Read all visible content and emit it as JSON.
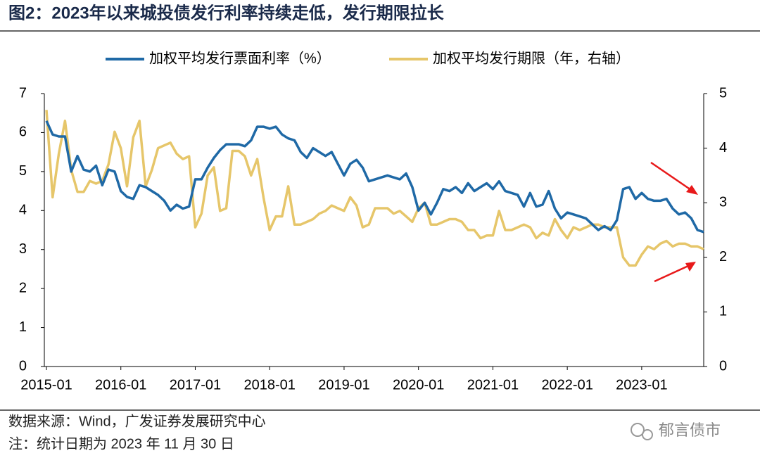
{
  "chart_data": {
    "type": "line",
    "title": "图2：2023年以来城投债发行利率持续走低，发行期限拉长",
    "x": [
      "2015-01",
      "2015-02",
      "2015-03",
      "2015-04",
      "2015-05",
      "2015-06",
      "2015-07",
      "2015-08",
      "2015-09",
      "2015-10",
      "2015-11",
      "2015-12",
      "2016-01",
      "2016-02",
      "2016-03",
      "2016-04",
      "2016-05",
      "2016-06",
      "2016-07",
      "2016-08",
      "2016-09",
      "2016-10",
      "2016-11",
      "2016-12",
      "2017-01",
      "2017-02",
      "2017-03",
      "2017-04",
      "2017-05",
      "2017-06",
      "2017-07",
      "2017-08",
      "2017-09",
      "2017-10",
      "2017-11",
      "2017-12",
      "2018-01",
      "2018-02",
      "2018-03",
      "2018-04",
      "2018-05",
      "2018-06",
      "2018-07",
      "2018-08",
      "2018-09",
      "2018-10",
      "2018-11",
      "2018-12",
      "2019-01",
      "2019-02",
      "2019-03",
      "2019-04",
      "2019-05",
      "2019-06",
      "2019-07",
      "2019-08",
      "2019-09",
      "2019-10",
      "2019-11",
      "2019-12",
      "2020-01",
      "2020-02",
      "2020-03",
      "2020-04",
      "2020-05",
      "2020-06",
      "2020-07",
      "2020-08",
      "2020-09",
      "2020-10",
      "2020-11",
      "2020-12",
      "2021-01",
      "2021-02",
      "2021-03",
      "2021-04",
      "2021-05",
      "2021-06",
      "2021-07",
      "2021-08",
      "2021-09",
      "2021-10",
      "2021-11",
      "2021-12",
      "2022-01",
      "2022-02",
      "2022-03",
      "2022-04",
      "2022-05",
      "2022-06",
      "2022-07",
      "2022-08",
      "2022-09",
      "2022-10",
      "2022-11",
      "2022-12",
      "2023-01",
      "2023-02",
      "2023-03",
      "2023-04",
      "2023-05",
      "2023-06",
      "2023-07",
      "2023-08",
      "2023-09",
      "2023-10",
      "2023-11"
    ],
    "xticks": [
      "2015-01",
      "2016-01",
      "2017-01",
      "2018-01",
      "2019-01",
      "2020-01",
      "2021-01",
      "2022-01",
      "2023-01"
    ],
    "series": [
      {
        "name": "加权平均发行票面利率（%）",
        "color": "#1f69a6",
        "values": [
          6.3,
          5.95,
          5.9,
          5.9,
          5.0,
          5.4,
          5.05,
          5.0,
          5.15,
          4.65,
          5.05,
          5.0,
          4.5,
          4.35,
          4.3,
          4.65,
          4.6,
          4.5,
          4.4,
          4.25,
          4.0,
          4.15,
          4.05,
          4.1,
          4.8,
          4.8,
          5.1,
          5.35,
          5.55,
          5.7,
          5.7,
          5.7,
          5.65,
          5.8,
          6.15,
          6.15,
          6.1,
          6.15,
          5.95,
          5.85,
          5.8,
          5.5,
          5.35,
          5.6,
          5.5,
          5.4,
          5.5,
          5.2,
          4.9,
          5.2,
          5.3,
          5.1,
          4.75,
          4.8,
          4.85,
          4.9,
          4.85,
          4.8,
          4.95,
          4.6,
          4.0,
          4.2,
          3.9,
          4.2,
          4.55,
          4.5,
          4.6,
          4.45,
          4.7,
          4.5,
          4.6,
          4.7,
          4.55,
          4.75,
          4.5,
          4.45,
          4.4,
          4.1,
          4.45,
          4.1,
          4.15,
          4.5,
          4.05,
          3.8,
          3.95,
          3.9,
          3.85,
          3.8,
          3.65,
          3.5,
          3.6,
          3.5,
          3.75,
          4.55,
          4.6,
          4.3,
          4.45,
          4.3,
          4.25,
          4.25,
          4.3,
          4.05,
          3.9,
          3.95,
          3.8,
          3.5,
          3.45
        ]
      },
      {
        "name": "加权平均发行期限（年，右轴）",
        "color": "#e6c66a",
        "axis": "y2",
        "values": [
          4.7,
          3.1,
          3.9,
          4.5,
          3.6,
          3.2,
          3.2,
          3.4,
          3.35,
          3.4,
          3.7,
          4.3,
          4.0,
          3.3,
          4.2,
          4.5,
          3.3,
          3.6,
          4.0,
          4.05,
          4.1,
          3.9,
          3.8,
          3.85,
          2.55,
          2.8,
          3.5,
          3.65,
          2.85,
          2.9,
          3.95,
          3.95,
          3.85,
          3.5,
          3.8,
          3.1,
          2.5,
          2.75,
          2.75,
          3.3,
          2.6,
          2.6,
          2.65,
          2.7,
          2.8,
          2.85,
          2.95,
          2.9,
          2.85,
          3.1,
          2.95,
          2.55,
          2.6,
          2.9,
          2.9,
          2.9,
          2.8,
          2.85,
          2.75,
          2.65,
          2.9,
          3.0,
          2.6,
          2.6,
          2.65,
          2.7,
          2.7,
          2.65,
          2.5,
          2.5,
          2.35,
          2.4,
          2.4,
          2.85,
          2.5,
          2.5,
          2.55,
          2.6,
          2.55,
          2.35,
          2.45,
          2.4,
          2.7,
          2.5,
          2.35,
          2.55,
          2.5,
          2.55,
          2.6,
          2.6,
          2.55,
          2.55,
          2.55,
          2.0,
          1.85,
          1.85,
          2.05,
          2.2,
          2.15,
          2.25,
          2.3,
          2.2,
          2.25,
          2.25,
          2.2,
          2.2,
          2.15
        ]
      }
    ],
    "ylim": [
      0,
      7
    ],
    "yticks": [
      0,
      1,
      2,
      3,
      4,
      5,
      6,
      7
    ],
    "y2lim": [
      0,
      5
    ],
    "y2ticks": [
      0,
      1,
      2,
      3,
      4,
      5
    ],
    "legend": "top",
    "source": "数据来源：Wind，广发证券发展研究中心",
    "note": "注：统计日期为 2023 年 11 月 30 日",
    "watermark": "郁言债市"
  }
}
